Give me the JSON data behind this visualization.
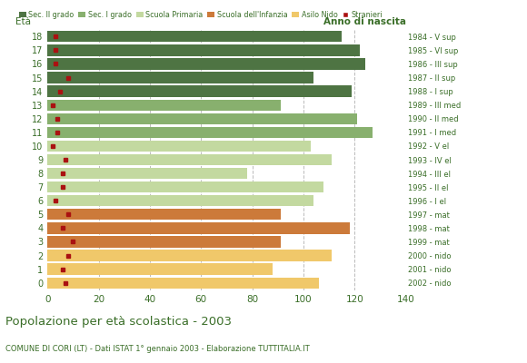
{
  "ages": [
    18,
    17,
    16,
    15,
    14,
    13,
    12,
    11,
    10,
    9,
    8,
    7,
    6,
    5,
    4,
    3,
    2,
    1,
    0
  ],
  "anno_nascita": [
    "1984 - V sup",
    "1985 - VI sup",
    "1986 - III sup",
    "1987 - II sup",
    "1988 - I sup",
    "1989 - III med",
    "1990 - II med",
    "1991 - I med",
    "1992 - V el",
    "1993 - IV el",
    "1994 - III el",
    "1995 - II el",
    "1996 - I el",
    "1997 - mat",
    "1998 - mat",
    "1999 - mat",
    "2000 - nido",
    "2001 - nido",
    "2002 - nido"
  ],
  "bar_values": [
    115,
    122,
    124,
    104,
    119,
    91,
    121,
    127,
    103,
    111,
    78,
    108,
    104,
    91,
    118,
    91,
    111,
    88,
    106
  ],
  "stranieri": [
    3,
    3,
    3,
    8,
    5,
    2,
    4,
    4,
    2,
    7,
    6,
    6,
    3,
    8,
    6,
    10,
    8,
    6,
    7
  ],
  "bar_colors": [
    "#4e7443",
    "#4e7443",
    "#4e7443",
    "#4e7443",
    "#4e7443",
    "#88b06e",
    "#88b06e",
    "#88b06e",
    "#c3d9a0",
    "#c3d9a0",
    "#c3d9a0",
    "#c3d9a0",
    "#c3d9a0",
    "#cc7a3a",
    "#cc7a3a",
    "#cc7a3a",
    "#f0c86a",
    "#f0c86a",
    "#f0c86a"
  ],
  "stranieri_color": "#aa1111",
  "legend_labels": [
    "Sec. II grado",
    "Sec. I grado",
    "Scuola Primaria",
    "Scuola dell'Infanzia",
    "Asilo Nido",
    "Stranieri"
  ],
  "legend_colors": [
    "#4e7443",
    "#88b06e",
    "#c3d9a0",
    "#cc7a3a",
    "#f0c86a",
    "#aa1111"
  ],
  "title": "Popolazione per età scolastica - 2003",
  "subtitle": "COMUNE DI CORI (LT) - Dati ISTAT 1° gennaio 2003 - Elaborazione TUTTITALIA.IT",
  "ylabel_left": "Età",
  "ylabel_right": "Anno di nascita",
  "xlim": [
    0,
    140
  ],
  "xticks": [
    0,
    20,
    40,
    60,
    80,
    100,
    120,
    140
  ],
  "background_color": "#ffffff",
  "grid_color": "#bbbbbb",
  "title_color": "#3a6e28",
  "subtitle_color": "#3a6e28",
  "text_color": "#3a6e28"
}
